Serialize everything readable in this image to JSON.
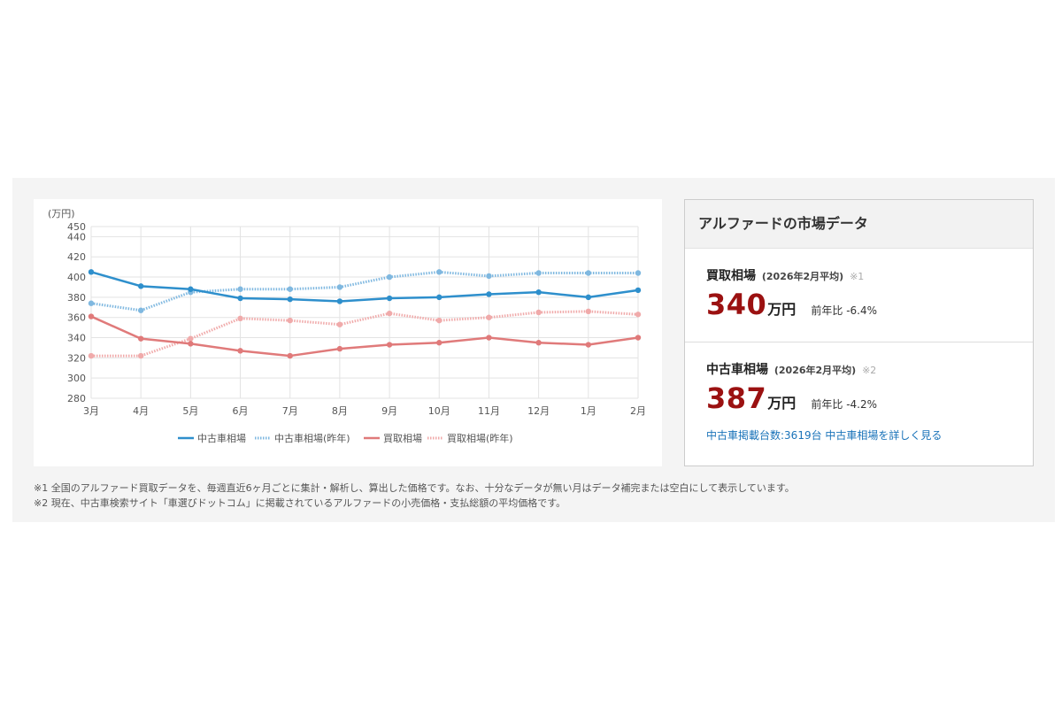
{
  "chart_data": {
    "type": "line",
    "unit_label": "(万円)",
    "categories": [
      "3月",
      "4月",
      "5月",
      "6月",
      "7月",
      "8月",
      "9月",
      "10月",
      "11月",
      "12月",
      "1月",
      "2月"
    ],
    "ylim": [
      280,
      450
    ],
    "yticks": [
      280,
      300,
      320,
      340,
      360,
      380,
      400,
      420,
      440,
      450
    ],
    "grid": true,
    "legend_position": "bottom",
    "series": [
      {
        "name": "中古車相場",
        "color": "#2e8fcc",
        "style": "solid",
        "values": [
          405,
          391,
          388,
          379,
          378,
          376,
          379,
          380,
          383,
          385,
          380,
          387
        ]
      },
      {
        "name": "中古車相場(昨年)",
        "color": "#7fb8e0",
        "style": "dotted",
        "values": [
          374,
          367,
          385,
          388,
          388,
          390,
          400,
          405,
          401,
          404,
          404,
          404
        ]
      },
      {
        "name": "買取相場",
        "color": "#e07a7a",
        "style": "solid",
        "values": [
          361,
          339,
          334,
          327,
          322,
          329,
          333,
          335,
          340,
          335,
          333,
          340
        ]
      },
      {
        "name": "買取相場(昨年)",
        "color": "#f0aaaa",
        "style": "dotted",
        "values": [
          322,
          322,
          339,
          359,
          357,
          353,
          364,
          357,
          360,
          365,
          366,
          363
        ]
      }
    ]
  },
  "market": {
    "title": "アルファードの市場データ",
    "buy": {
      "label": "買取相場",
      "period": "(2026年2月平均)",
      "note": "※1",
      "value": "340",
      "unit": "万円",
      "yoy": "前年比 -6.4%"
    },
    "used": {
      "label": "中古車相場",
      "period": "(2026年2月平均)",
      "note": "※2",
      "value": "387",
      "unit": "万円",
      "yoy": "前年比 -4.2%",
      "count_link": "中古車掲載台数:3619台",
      "detail_link": "中古車相場を詳しく見る"
    }
  },
  "footnotes": [
    "※1 全国のアルファード買取データを、毎週直近6ヶ月ごとに集計・解析し、算出した価格です。なお、十分なデータが無い月はデータ補完または空白にして表示しています。",
    "※2 現在、中古車検索サイト「車選びドットコム」に掲載されているアルファードの小売価格・支払総額の平均価格です。"
  ],
  "colors": {
    "value_red": "#9b1111",
    "link_blue": "#1a73b9"
  }
}
